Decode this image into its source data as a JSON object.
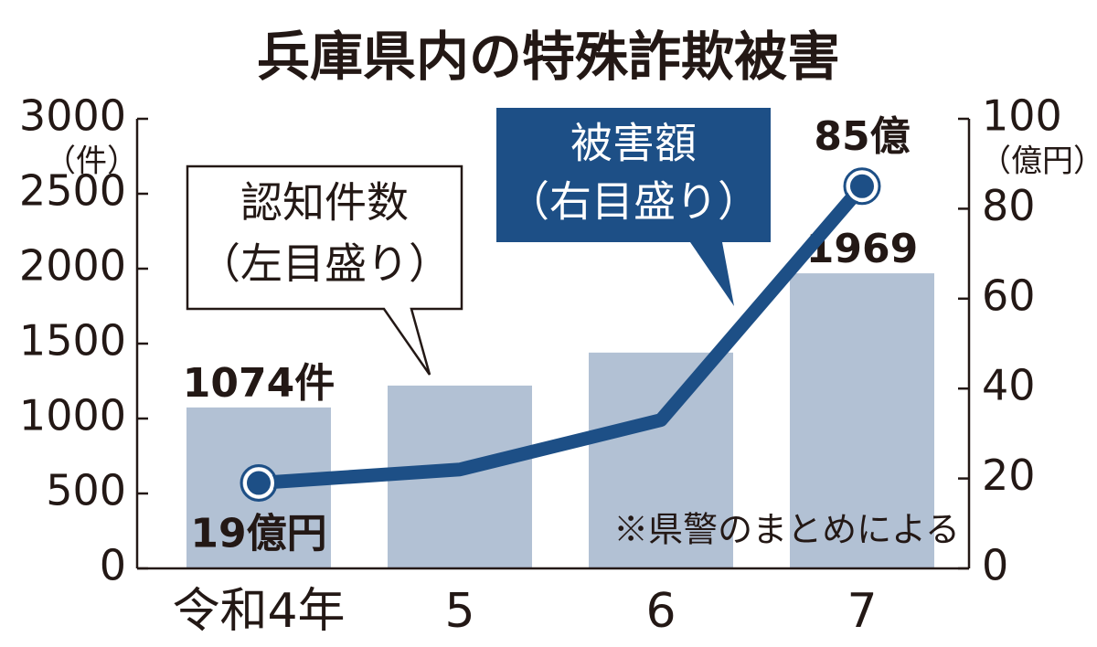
{
  "chart_data": {
    "type": "bar_line",
    "title": "兵庫県内の特殊詐欺被害",
    "categories": [
      "令和4年",
      "5",
      "6",
      "7"
    ],
    "series": [
      {
        "name": "認知件数",
        "scale_note": "（左目盛り）",
        "type": "bar",
        "axis": "y",
        "color": "#b2c1d4",
        "values": [
          1074,
          1220,
          1440,
          1969
        ],
        "value_labels": [
          "1074件",
          null,
          null,
          "1969"
        ]
      },
      {
        "name": "被害額",
        "scale_note": "（右目盛り）",
        "type": "line",
        "axis": "y2",
        "color": "#1d4f86",
        "values": [
          19,
          22,
          33,
          85
        ],
        "value_labels": [
          "19億円",
          null,
          null,
          "85億"
        ]
      }
    ],
    "ylabel": "（件）",
    "y2label": "（億円）",
    "ylim": [
      0,
      3000
    ],
    "yticks": [
      0,
      500,
      1000,
      1500,
      2000,
      2500,
      3000
    ],
    "y2lim": [
      0,
      100
    ],
    "y2ticks": [
      0,
      20,
      40,
      60,
      80,
      100
    ],
    "note": "※県警のまとめによる"
  }
}
